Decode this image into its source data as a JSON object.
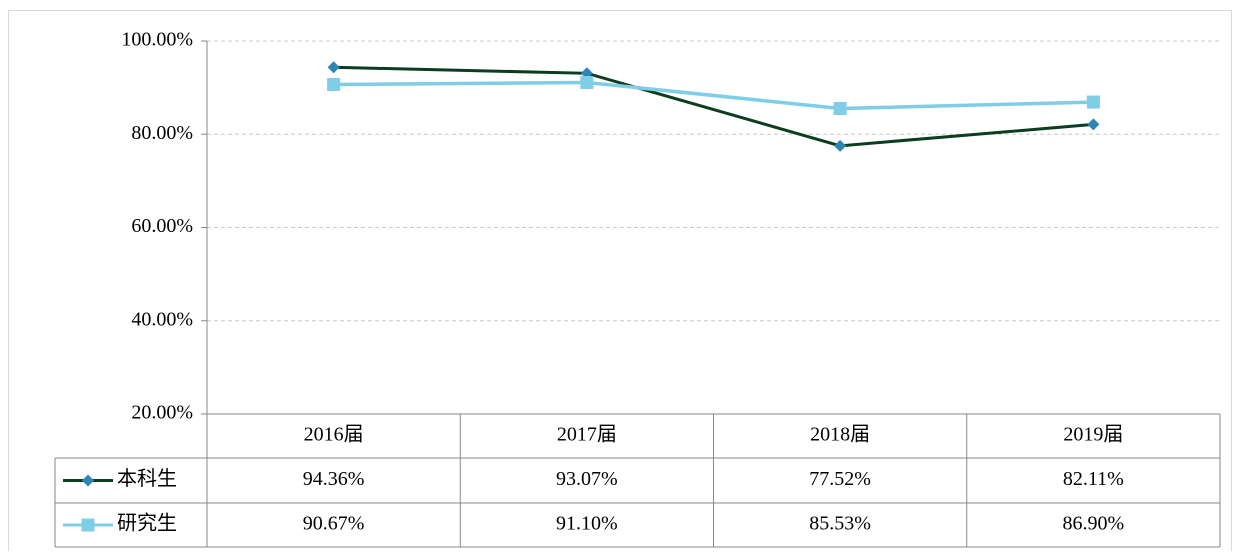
{
  "chart_data": {
    "type": "line",
    "categories": [
      "2016届",
      "2017届",
      "2018届",
      "2019届"
    ],
    "series": [
      {
        "name": "本科生",
        "color": "#0d3d1f",
        "marker": "diamond",
        "marker_color": "#2e86b4",
        "values": [
          94.36,
          93.07,
          77.52,
          82.11
        ],
        "value_labels": [
          "94.36%",
          "93.07%",
          "77.52%",
          "82.11%"
        ]
      },
      {
        "name": "研究生",
        "color": "#7fcde6",
        "marker": "square",
        "marker_color": "#7fcde6",
        "values": [
          90.67,
          91.1,
          85.53,
          86.9
        ],
        "value_labels": [
          "90.67%",
          "91.10%",
          "85.53%",
          "86.90%"
        ]
      }
    ],
    "ylim": [
      20,
      100
    ],
    "yticks": [
      {
        "value": 20,
        "label": "20.00%"
      },
      {
        "value": 40,
        "label": "40.00%"
      },
      {
        "value": 60,
        "label": "60.00%"
      },
      {
        "value": 80,
        "label": "80.00%"
      },
      {
        "value": 100,
        "label": "100.00%"
      }
    ],
    "grid": true,
    "data_table": true
  }
}
